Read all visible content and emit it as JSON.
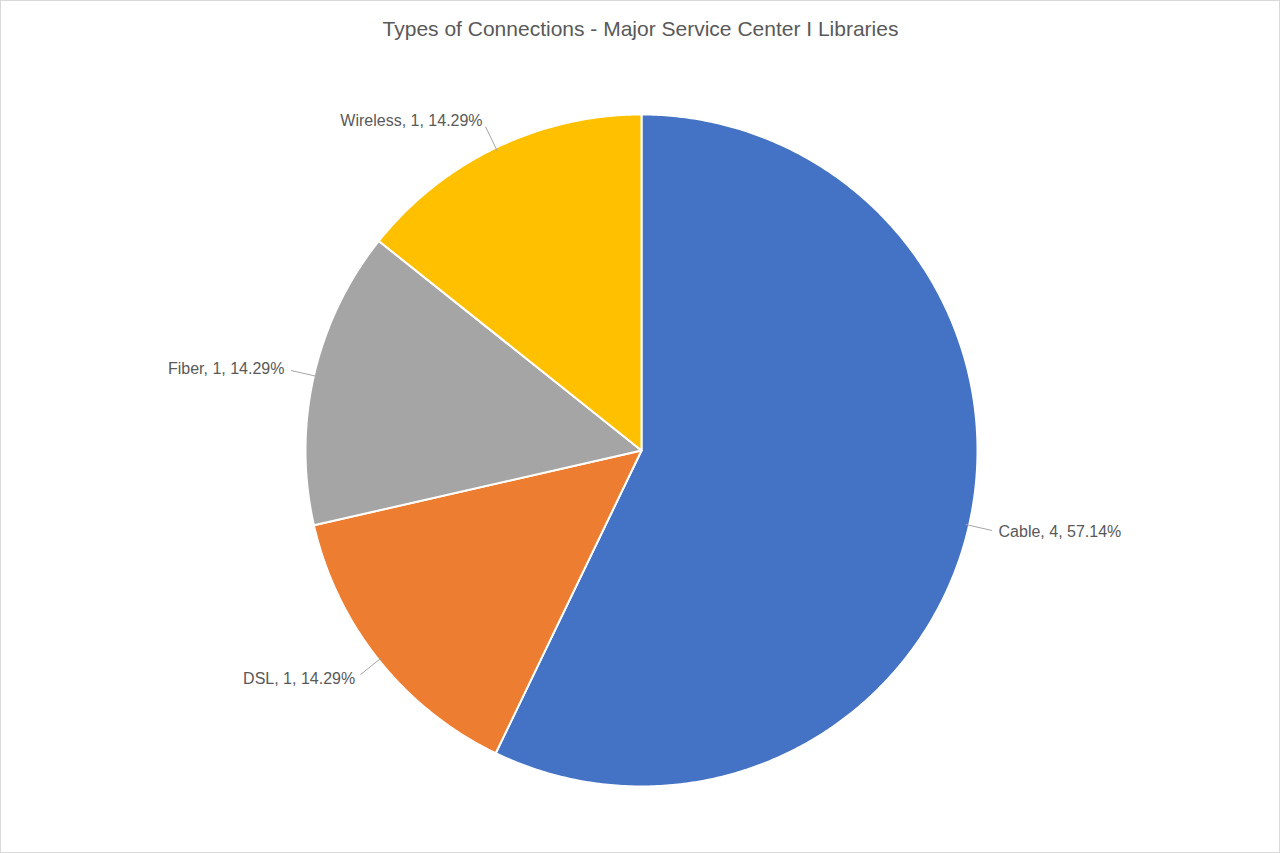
{
  "chart_data": {
    "type": "pie",
    "title": "Types of Connections - Major Service Center I Libraries",
    "categories": [
      "Cable",
      "DSL",
      "Fiber",
      "Wireless"
    ],
    "values": [
      4,
      1,
      1,
      1
    ],
    "value_labels": [
      "Cable, 4, 57.14%",
      "DSL, 1, 14.29%",
      "Fiber, 1, 14.29%",
      "Wireless, 1, 14.29%"
    ],
    "colors": [
      "#4472c4",
      "#ed7d31",
      "#a5a5a5",
      "#ffc000"
    ],
    "data_labels": true
  }
}
